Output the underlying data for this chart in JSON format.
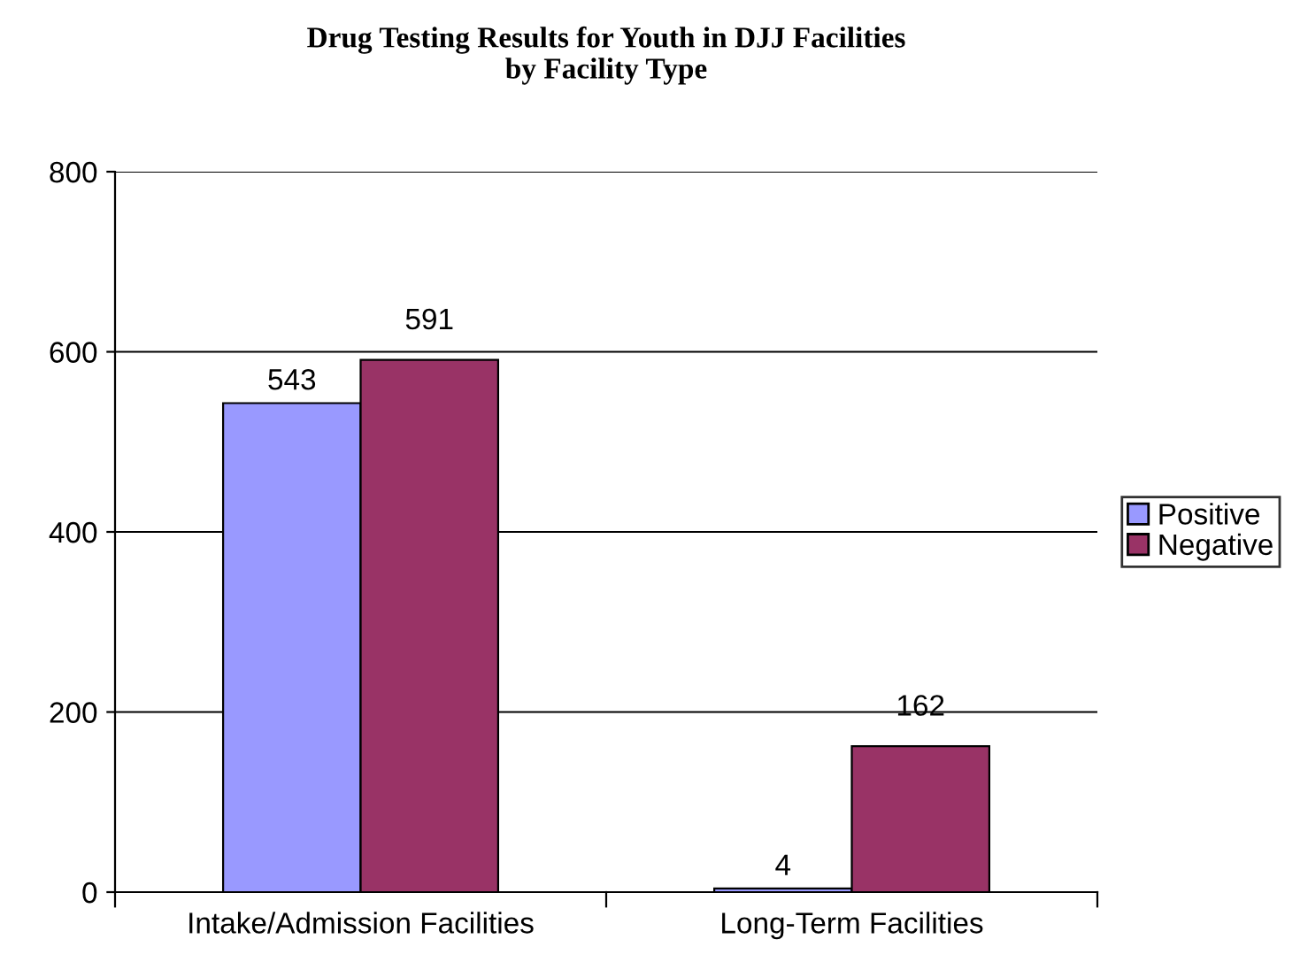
{
  "chart_data": {
    "type": "bar",
    "title": "Drug Testing Results for Youth in DJJ Facilities\nby Facility Type",
    "categories": [
      "Intake/Admission Facilities",
      "Long-Term Facilities"
    ],
    "series": [
      {
        "name": "Positive",
        "color": "#9999ff",
        "values": [
          543,
          4
        ]
      },
      {
        "name": "Negative",
        "color": "#993366",
        "values": [
          591,
          162
        ]
      }
    ],
    "ylim": [
      0,
      800
    ],
    "yticks": [
      0,
      200,
      400,
      600,
      800
    ],
    "grid": "y",
    "legend": "right",
    "data_labels": true
  }
}
